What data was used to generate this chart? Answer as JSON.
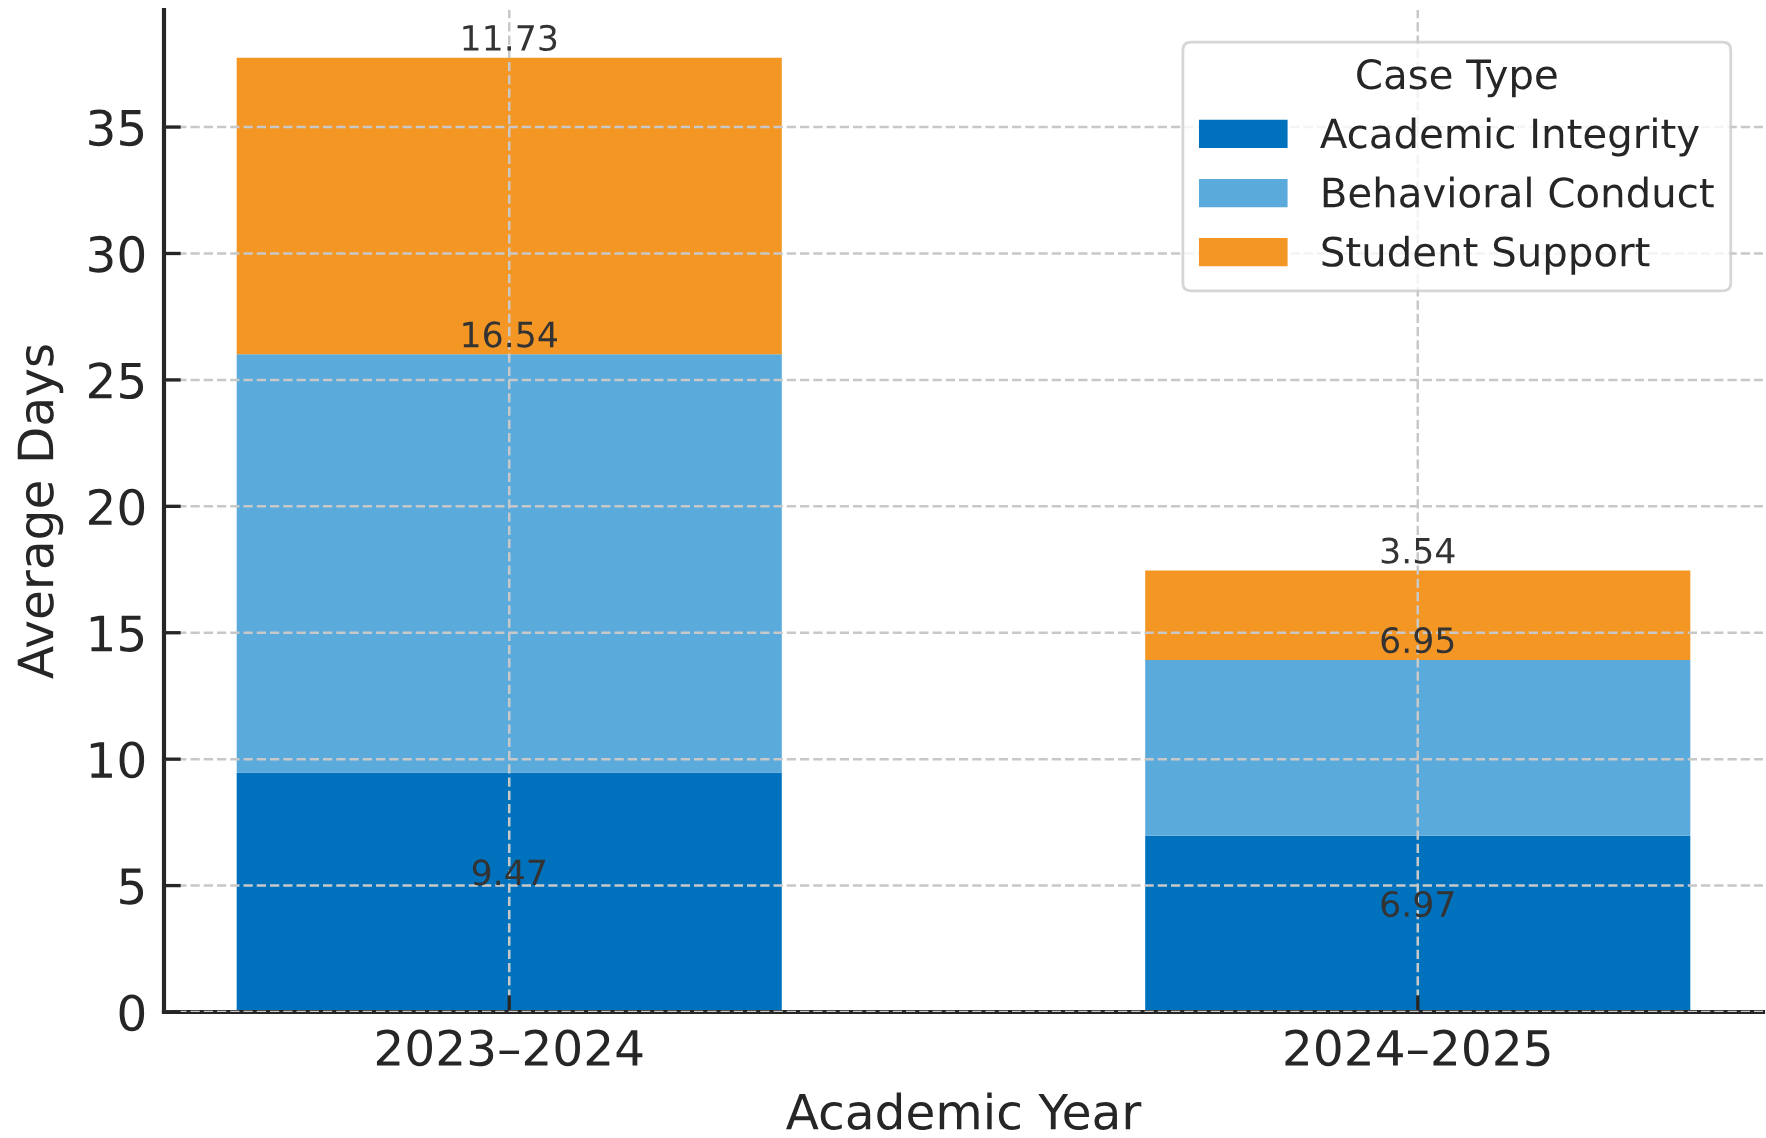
{
  "chart_data": {
    "type": "bar",
    "xlabel": "Academic Year",
    "ylabel": "Average Days",
    "categories": [
      "2023–2024",
      "2024–2025"
    ],
    "series": [
      {
        "name": "Academic Integrity",
        "color": "#0072bd",
        "values": [
          9.47,
          6.97
        ]
      },
      {
        "name": "Behavioral Conduct",
        "color": "#5aaadb",
        "values": [
          16.54,
          6.95
        ]
      },
      {
        "name": "Student Support",
        "color": "#f39624",
        "values": [
          11.73,
          3.54
        ]
      }
    ],
    "stacked": true,
    "ylim": [
      0,
      39.63
    ],
    "yticks": [
      0,
      5,
      10,
      15,
      20,
      25,
      30,
      35
    ],
    "grid": true,
    "legend": "top right",
    "legend_title": "Case Type",
    "data_labels": true
  }
}
